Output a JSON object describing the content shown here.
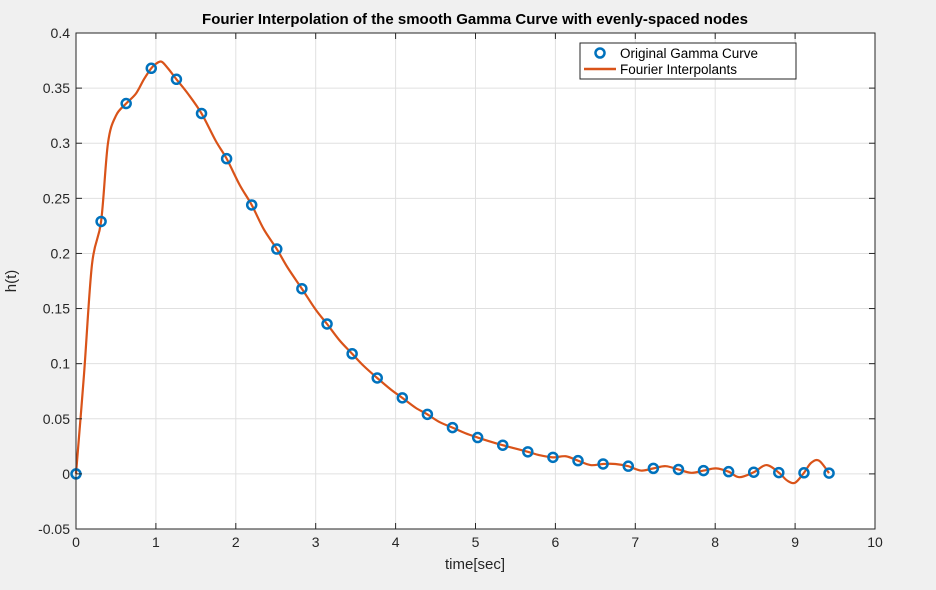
{
  "chart_data": {
    "type": "line",
    "title": "Fourier Interpolation of the smooth Gamma Curve with evenly-spaced nodes",
    "xlabel": "time[sec]",
    "ylabel": "h(t)",
    "xlim": [
      0,
      10
    ],
    "ylim": [
      -0.05,
      0.4
    ],
    "xticks": [
      0,
      1,
      2,
      3,
      4,
      5,
      6,
      7,
      8,
      9,
      10
    ],
    "xtick_labels": [
      "0",
      "1",
      "2",
      "3",
      "4",
      "5",
      "6",
      "7",
      "8",
      "9",
      "10"
    ],
    "yticks": [
      -0.05,
      0,
      0.05,
      0.1,
      0.15,
      0.2,
      0.25,
      0.3,
      0.35,
      0.4
    ],
    "ytick_labels": [
      "-0.05",
      "0",
      "0.05",
      "0.1",
      "0.15",
      "0.2",
      "0.25",
      "0.3",
      "0.35",
      "0.4"
    ],
    "grid": true,
    "legend_position": "top-right",
    "series": [
      {
        "name": "Original Gamma Curve",
        "style": "markers",
        "marker": "circle",
        "color": "#0072BD",
        "x": [
          0,
          0.314,
          0.628,
          0.942,
          1.257,
          1.571,
          1.885,
          2.199,
          2.513,
          2.827,
          3.142,
          3.456,
          3.77,
          4.084,
          4.398,
          4.712,
          5.027,
          5.341,
          5.655,
          5.969,
          6.283,
          6.597,
          6.912,
          7.226,
          7.54,
          7.854,
          8.168,
          8.482,
          8.796,
          9.111,
          9.425
        ],
        "y": [
          0,
          0.229,
          0.336,
          0.368,
          0.358,
          0.327,
          0.286,
          0.244,
          0.204,
          0.168,
          0.136,
          0.109,
          0.087,
          0.069,
          0.054,
          0.042,
          0.033,
          0.026,
          0.02,
          0.015,
          0.012,
          0.009,
          0.007,
          0.005,
          0.004,
          0.003,
          0.002,
          0.0015,
          0.0012,
          0.001,
          0.0007
        ]
      },
      {
        "name": "Fourier Interpolants",
        "style": "line",
        "color": "#D95319",
        "x": [
          0,
          0.1,
          0.2,
          0.314,
          0.4,
          0.5,
          0.628,
          0.75,
          0.85,
          0.942,
          1.0,
          1.07,
          1.15,
          1.257,
          1.4,
          1.571,
          1.75,
          1.885,
          2.05,
          2.199,
          2.35,
          2.513,
          2.65,
          2.827,
          3.0,
          3.142,
          3.3,
          3.456,
          3.6,
          3.77,
          3.95,
          4.084,
          4.25,
          4.398,
          4.55,
          4.712,
          4.87,
          5.027,
          5.2,
          5.341,
          5.5,
          5.655,
          5.8,
          5.969,
          6.13,
          6.283,
          6.44,
          6.597,
          6.75,
          6.912,
          7.07,
          7.226,
          7.38,
          7.54,
          7.7,
          7.854,
          8.01,
          8.168,
          8.3,
          8.482,
          8.64,
          8.796,
          8.9,
          9.0,
          9.111,
          9.2,
          9.3,
          9.425
        ],
        "y": [
          0,
          0.09,
          0.19,
          0.229,
          0.3,
          0.325,
          0.336,
          0.345,
          0.358,
          0.368,
          0.372,
          0.374,
          0.368,
          0.358,
          0.345,
          0.327,
          0.302,
          0.286,
          0.262,
          0.244,
          0.222,
          0.204,
          0.187,
          0.168,
          0.149,
          0.136,
          0.121,
          0.109,
          0.098,
          0.087,
          0.076,
          0.069,
          0.06,
          0.054,
          0.047,
          0.042,
          0.037,
          0.033,
          0.029,
          0.026,
          0.023,
          0.02,
          0.017,
          0.015,
          0.016,
          0.012,
          0.008,
          0.009,
          0.009,
          0.007,
          0.003,
          0.005,
          0.007,
          0.004,
          0.001,
          0.003,
          0.005,
          0.002,
          -0.003,
          0.0015,
          0.008,
          0.0012,
          -0.006,
          -0.008,
          0.001,
          0.01,
          0.012,
          0.0007
        ]
      }
    ]
  }
}
